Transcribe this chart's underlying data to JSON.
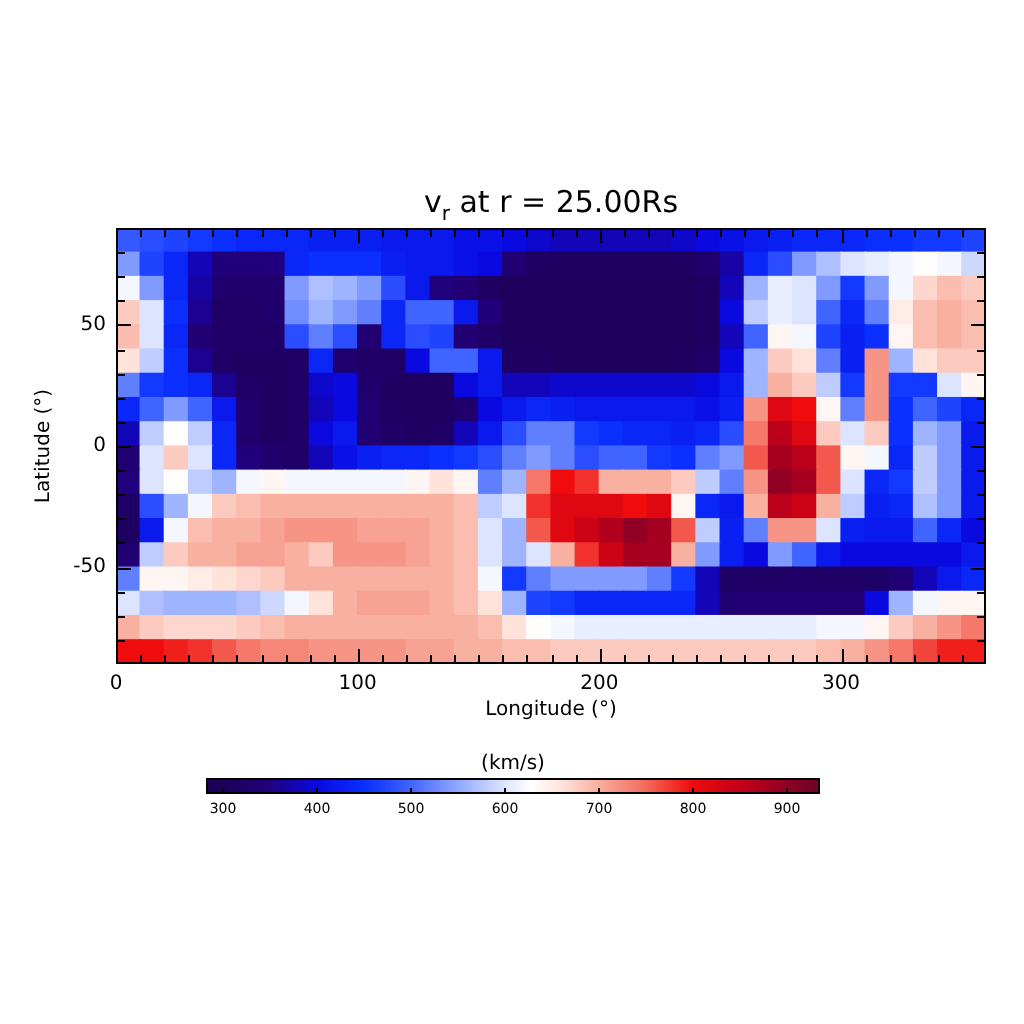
{
  "chart_data": {
    "type": "heatmap",
    "title": "v$_{r}$ at r = 25.00Rs",
    "xlabel": "Longitude (°)",
    "ylabel": "Latitude (°)",
    "clabel": "(km/s)",
    "x": [
      5,
      15,
      25,
      35,
      45,
      55,
      65,
      75,
      85,
      95,
      105,
      115,
      125,
      135,
      145,
      155,
      165,
      175,
      185,
      195,
      205,
      215,
      225,
      235,
      245,
      255,
      265,
      275,
      285,
      295,
      305,
      315,
      325,
      335,
      345,
      355
    ],
    "y": [
      85,
      75,
      65,
      55,
      45,
      35,
      25,
      15,
      5,
      -5,
      -15,
      -25,
      -35,
      -45,
      -55,
      -65,
      -75,
      -85
    ],
    "xlim": [
      0,
      360
    ],
    "ylim": [
      -90,
      90
    ],
    "xticks": [
      0,
      {
        "value": 10,
        "label": null
      },
      {
        "value": 20,
        "label": null
      },
      {
        "value": 30,
        "label": null
      },
      {
        "value": 40,
        "label": null
      },
      {
        "value": 50,
        "label": null
      },
      {
        "value": 60,
        "label": null
      },
      {
        "value": 70,
        "label": null
      },
      {
        "value": 80,
        "label": null
      },
      {
        "value": 90,
        "label": null
      },
      100,
      {
        "value": 110,
        "label": null
      },
      {
        "value": 120,
        "label": null
      },
      {
        "value": 130,
        "label": null
      },
      {
        "value": 140,
        "label": null
      },
      {
        "value": 150,
        "label": null
      },
      {
        "value": 160,
        "label": null
      },
      {
        "value": 170,
        "label": null
      },
      {
        "value": 180,
        "label": null
      },
      {
        "value": 190,
        "label": null
      },
      200,
      {
        "value": 210,
        "label": null
      },
      {
        "value": 220,
        "label": null
      },
      {
        "value": 230,
        "label": null
      },
      {
        "value": 240,
        "label": null
      },
      {
        "value": 250,
        "label": null
      },
      {
        "value": 260,
        "label": null
      },
      {
        "value": 270,
        "label": null
      },
      {
        "value": 280,
        "label": null
      },
      {
        "value": 290,
        "label": null
      },
      300,
      {
        "value": 310,
        "label": null
      },
      {
        "value": 320,
        "label": null
      },
      {
        "value": 330,
        "label": null
      },
      {
        "value": 340,
        "label": null
      },
      {
        "value": 350,
        "label": null
      }
    ],
    "yticks": [
      {
        "value": -80,
        "label": null
      },
      {
        "value": -70,
        "label": null
      },
      {
        "value": -60,
        "label": null
      },
      -50,
      {
        "value": -40,
        "label": null
      },
      {
        "value": -30,
        "label": null
      },
      {
        "value": -20,
        "label": null
      },
      {
        "value": -10,
        "label": null
      },
      0,
      {
        "value": 10,
        "label": null
      },
      {
        "value": 20,
        "label": null
      },
      {
        "value": 30,
        "label": null
      },
      {
        "value": 40,
        "label": null
      },
      50,
      {
        "value": 60,
        "label": null
      },
      {
        "value": 70,
        "label": null
      },
      {
        "value": 80,
        "label": null
      }
    ],
    "clim": [
      282,
      936
    ],
    "cticks": [
      300,
      400,
      500,
      600,
      700,
      800,
      900
    ],
    "cells": [
      [
        490,
        480,
        470,
        460,
        450,
        440,
        440,
        440,
        430,
        430,
        430,
        420,
        420,
        420,
        410,
        410,
        400,
        390,
        380,
        380,
        380,
        380,
        380,
        390,
        400,
        410,
        420,
        430,
        440,
        440,
        440,
        450,
        450,
        460,
        460,
        470
      ],
      [
        540,
        470,
        440,
        380,
        350,
        350,
        350,
        440,
        450,
        450,
        450,
        430,
        420,
        420,
        410,
        400,
        340,
        310,
        310,
        310,
        310,
        310,
        310,
        310,
        330,
        370,
        440,
        480,
        540,
        570,
        600,
        610,
        620,
        630,
        620,
        590
      ],
      [
        620,
        540,
        440,
        370,
        330,
        330,
        330,
        540,
        570,
        560,
        540,
        480,
        420,
        350,
        340,
        310,
        300,
        300,
        300,
        300,
        300,
        300,
        300,
        300,
        310,
        380,
        560,
        610,
        600,
        540,
        460,
        540,
        620,
        670,
        690,
        680
      ],
      [
        680,
        600,
        450,
        360,
        320,
        320,
        330,
        530,
        560,
        540,
        520,
        440,
        500,
        500,
        420,
        350,
        300,
        300,
        300,
        300,
        300,
        300,
        300,
        300,
        310,
        400,
        580,
        610,
        600,
        500,
        440,
        520,
        650,
        690,
        700,
        690
      ],
      [
        690,
        600,
        440,
        340,
        320,
        320,
        320,
        480,
        520,
        480,
        340,
        440,
        480,
        470,
        340,
        320,
        300,
        300,
        300,
        300,
        300,
        300,
        300,
        300,
        310,
        380,
        500,
        640,
        620,
        470,
        430,
        450,
        640,
        690,
        700,
        690
      ],
      [
        660,
        580,
        450,
        360,
        320,
        310,
        310,
        320,
        440,
        330,
        320,
        320,
        400,
        500,
        500,
        420,
        310,
        310,
        300,
        300,
        300,
        300,
        300,
        310,
        320,
        400,
        560,
        680,
        660,
        520,
        430,
        720,
        560,
        660,
        680,
        680
      ],
      [
        520,
        460,
        450,
        440,
        360,
        320,
        310,
        320,
        390,
        400,
        330,
        310,
        310,
        310,
        400,
        420,
        380,
        380,
        390,
        390,
        390,
        390,
        390,
        390,
        400,
        420,
        560,
        700,
        680,
        580,
        460,
        720,
        460,
        460,
        600,
        640
      ],
      [
        440,
        500,
        540,
        500,
        420,
        330,
        310,
        320,
        380,
        400,
        340,
        310,
        310,
        310,
        330,
        400,
        420,
        440,
        430,
        420,
        420,
        420,
        420,
        420,
        410,
        430,
        720,
        820,
        800,
        640,
        520,
        720,
        450,
        500,
        470,
        440
      ],
      [
        380,
        580,
        630,
        580,
        440,
        330,
        310,
        320,
        400,
        420,
        340,
        320,
        310,
        320,
        380,
        420,
        480,
        520,
        520,
        460,
        450,
        440,
        440,
        430,
        440,
        480,
        740,
        860,
        820,
        680,
        600,
        680,
        450,
        560,
        540,
        420
      ],
      [
        340,
        600,
        680,
        600,
        440,
        350,
        330,
        320,
        380,
        410,
        430,
        440,
        440,
        450,
        460,
        480,
        520,
        540,
        520,
        480,
        500,
        500,
        460,
        450,
        520,
        540,
        760,
        880,
        860,
        760,
        640,
        620,
        440,
        580,
        540,
        420
      ],
      [
        350,
        600,
        630,
        580,
        560,
        620,
        640,
        620,
        620,
        620,
        620,
        620,
        640,
        660,
        640,
        520,
        560,
        740,
        800,
        780,
        700,
        700,
        700,
        680,
        580,
        520,
        720,
        900,
        880,
        760,
        600,
        440,
        460,
        580,
        540,
        420
      ],
      [
        320,
        480,
        560,
        620,
        680,
        690,
        700,
        700,
        700,
        700,
        700,
        700,
        700,
        700,
        690,
        580,
        600,
        780,
        820,
        820,
        820,
        800,
        820,
        640,
        440,
        420,
        700,
        860,
        840,
        700,
        580,
        430,
        440,
        570,
        540,
        420
      ],
      [
        310,
        420,
        620,
        690,
        700,
        700,
        710,
        720,
        720,
        720,
        710,
        710,
        710,
        700,
        690,
        600,
        560,
        760,
        820,
        840,
        870,
        900,
        880,
        760,
        580,
        430,
        520,
        720,
        720,
        600,
        430,
        420,
        420,
        500,
        440,
        400
      ],
      [
        340,
        580,
        680,
        700,
        700,
        710,
        710,
        700,
        680,
        720,
        720,
        720,
        710,
        700,
        690,
        600,
        560,
        600,
        700,
        780,
        840,
        880,
        880,
        700,
        540,
        430,
        400,
        540,
        500,
        420,
        400,
        400,
        400,
        400,
        400,
        420
      ],
      [
        520,
        640,
        640,
        650,
        660,
        670,
        680,
        700,
        700,
        700,
        700,
        700,
        700,
        700,
        690,
        620,
        460,
        520,
        540,
        540,
        540,
        540,
        520,
        460,
        380,
        320,
        320,
        320,
        320,
        320,
        320,
        320,
        340,
        380,
        420,
        440
      ],
      [
        600,
        570,
        560,
        560,
        560,
        570,
        590,
        620,
        660,
        700,
        710,
        710,
        710,
        700,
        690,
        660,
        560,
        470,
        460,
        440,
        440,
        440,
        440,
        440,
        380,
        340,
        340,
        340,
        340,
        340,
        340,
        400,
        560,
        620,
        640,
        640
      ],
      [
        700,
        680,
        670,
        670,
        670,
        680,
        690,
        700,
        700,
        700,
        700,
        700,
        700,
        700,
        700,
        690,
        660,
        630,
        620,
        610,
        610,
        610,
        610,
        610,
        610,
        610,
        610,
        610,
        610,
        620,
        620,
        640,
        680,
        700,
        720,
        740
      ],
      [
        800,
        800,
        790,
        780,
        760,
        740,
        730,
        730,
        720,
        720,
        720,
        720,
        710,
        710,
        700,
        700,
        690,
        690,
        680,
        680,
        680,
        680,
        680,
        680,
        680,
        680,
        680,
        680,
        680,
        690,
        700,
        720,
        740,
        770,
        790,
        790
      ]
    ]
  }
}
